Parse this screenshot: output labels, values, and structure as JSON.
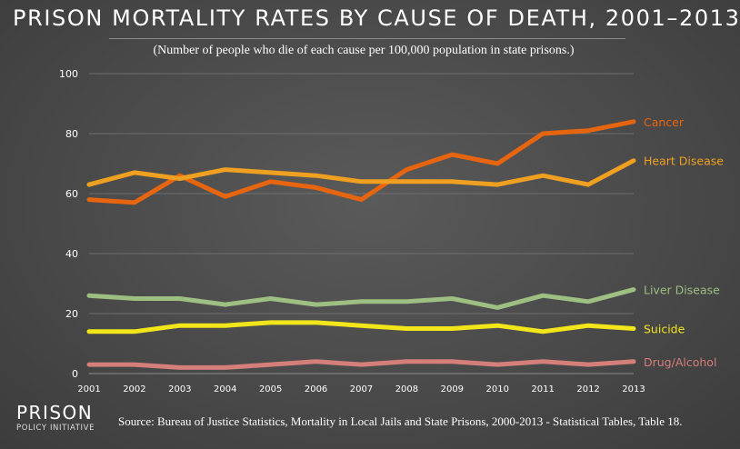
{
  "title": "PRISON MORTALITY RATES BY CAUSE OF DEATH, 2001–2013",
  "subtitle": "(Number of people who die of each cause per 100,000 population in state prisons.)",
  "source": "Source: Bureau of Justice Statistics, Mortality in Local Jails and State Prisons, 2000-2013 - Statistical Tables, Table 18.",
  "logo": {
    "name": "PRISON",
    "tagline": "POLICY INITIATIVE"
  },
  "chart_data": {
    "type": "line",
    "x": [
      2001,
      2002,
      2003,
      2004,
      2005,
      2006,
      2007,
      2008,
      2009,
      2010,
      2011,
      2012,
      2013
    ],
    "x_tick_labels": [
      "2001",
      "2002",
      "2003",
      "2004",
      "2005",
      "2006",
      "2007",
      "2008",
      "2009",
      "2010",
      "2011",
      "2012",
      "2013"
    ],
    "y_ticks": [
      0,
      20,
      40,
      60,
      80,
      100
    ],
    "ylim": [
      0,
      100
    ],
    "grid": true,
    "legend": "right-end labels",
    "series": [
      {
        "name": "Cancer",
        "color": "#e8650f",
        "values": [
          58,
          57,
          66,
          59,
          64,
          62,
          58,
          68,
          73,
          70,
          80,
          81,
          84
        ]
      },
      {
        "name": "Heart Disease",
        "color": "#f0a020",
        "values": [
          63,
          67,
          65,
          68,
          67,
          66,
          64,
          64,
          64,
          63,
          66,
          63,
          71
        ]
      },
      {
        "name": "Liver Disease",
        "color": "#9dbf82",
        "values": [
          26,
          25,
          25,
          23,
          25,
          23,
          24,
          24,
          25,
          22,
          26,
          24,
          28
        ]
      },
      {
        "name": "Suicide",
        "color": "#f2e51a",
        "values": [
          14,
          14,
          16,
          16,
          17,
          17,
          16,
          15,
          15,
          16,
          14,
          16,
          15
        ]
      },
      {
        "name": "Drug/Alcohol",
        "color": "#d47f7a",
        "values": [
          3,
          3,
          2,
          2,
          3,
          4,
          3,
          4,
          4,
          3,
          4,
          3,
          4
        ]
      }
    ]
  }
}
